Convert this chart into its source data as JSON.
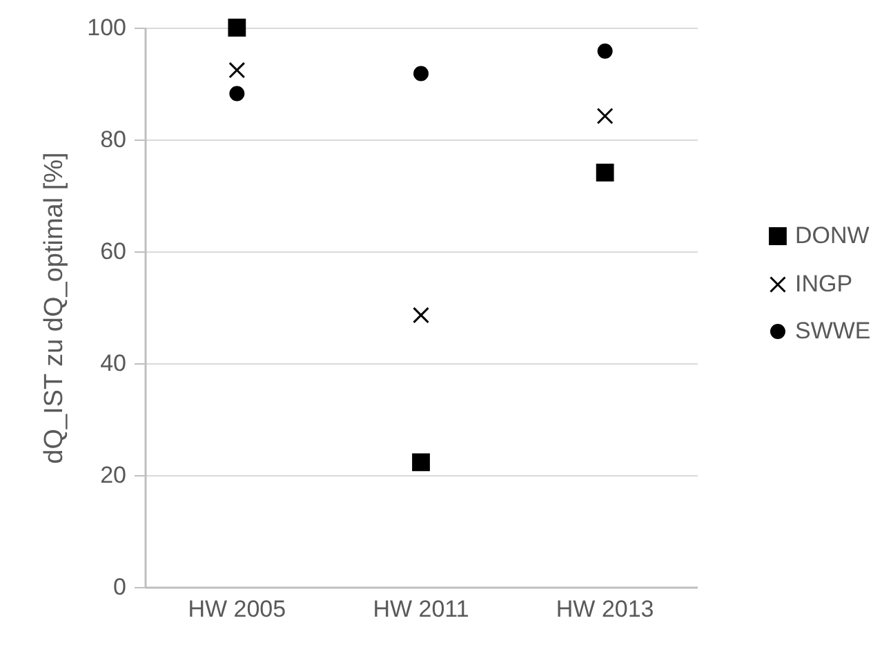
{
  "chart_data": {
    "type": "scatter",
    "ylabel": "dQ_IST zu dQ_optimal [%]",
    "categories": [
      "HW 2005",
      "HW 2011",
      "HW 2013"
    ],
    "series": [
      {
        "name": "DONW",
        "color": "#000000",
        "marker": "square",
        "values": [
          100,
          22.3,
          74.1
        ]
      },
      {
        "name": "INGP",
        "color": "#000000",
        "marker": "cross",
        "values": [
          92.4,
          48.6,
          84.2
        ]
      },
      {
        "name": "SWWE",
        "color": "#000000",
        "marker": "circle",
        "values": [
          88.2,
          91.8,
          95.8
        ]
      }
    ],
    "ylim": [
      0,
      100
    ],
    "yticks": [
      0,
      20,
      40,
      60,
      80,
      100
    ],
    "grid": "y",
    "legend": "right"
  }
}
